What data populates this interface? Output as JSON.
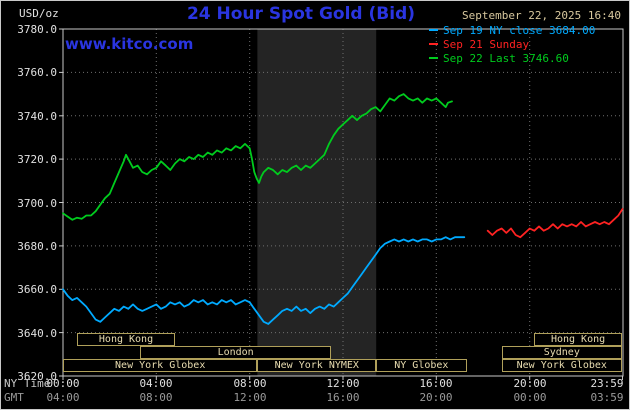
{
  "header": {
    "units_label": "USD/oz",
    "title": "24 Hour Spot Gold (Bid)",
    "datetime": "September 22, 2025 16:40",
    "watermark": "www.kitco.com"
  },
  "axes": {
    "ny_time_label": "NY Time",
    "gmt_label": "GMT"
  },
  "legend": {
    "items": [
      {
        "id": "sep19",
        "label": "Sep 19 NY close 3684.00",
        "color": "#00aaff"
      },
      {
        "id": "sep21",
        "label": "Sep 21 Sunday",
        "color": "#ff2222"
      },
      {
        "id": "sep22",
        "label": "Sep 22 Last 3746.60",
        "color": "#00cc1e"
      }
    ]
  },
  "colors": {
    "background": "#000000",
    "title_blue": "#2a35e0",
    "watermark_blue": "#2a35e0",
    "date_tan": "#d8c89e",
    "grid": "#6f6f6f",
    "plot_border": "#c8c8c8",
    "band": "#242424",
    "session_border": "#b0a05a",
    "session_text": "#e8dcb0"
  },
  "chart_data": {
    "type": "line",
    "title": "24 Hour Spot Gold (Bid)",
    "ylabel": "USD/oz",
    "ylim": [
      3620,
      3780
    ],
    "ytick_step": 20,
    "ytick_labels_top_to_bottom": [
      "3780.0",
      "3760.0",
      "3740.0",
      "3720.0",
      "3700.0",
      "3680.0",
      "3660.0",
      "3640.0",
      "3620.0"
    ],
    "xlim_hours": [
      0,
      24
    ],
    "grid": true,
    "legend_position": "top-right",
    "xticks": [
      {
        "hour": 0,
        "ny": "00:00",
        "gmt": "04:00"
      },
      {
        "hour": 4,
        "ny": "04:00",
        "gmt": "08:00"
      },
      {
        "hour": 8,
        "ny": "08:00",
        "gmt": "12:00"
      },
      {
        "hour": 12,
        "ny": "12:00",
        "gmt": "16:00"
      },
      {
        "hour": 16,
        "ny": "16:00",
        "gmt": "20:00"
      },
      {
        "hour": 20,
        "ny": "20:00",
        "gmt": "00:00"
      },
      {
        "hour": 23.98,
        "ny": "23:59",
        "gmt": "03:59"
      }
    ],
    "nymex_band_hours": [
      8.33,
      13.42
    ],
    "series": [
      {
        "id": "sep19",
        "name": "Sep 19 NY close",
        "close_value": 3684.0,
        "color": "#00aaff",
        "points": [
          [
            0,
            3660
          ],
          [
            0.2,
            3657
          ],
          [
            0.4,
            3655
          ],
          [
            0.6,
            3656
          ],
          [
            0.8,
            3654
          ],
          [
            1,
            3652
          ],
          [
            1.2,
            3649
          ],
          [
            1.4,
            3646
          ],
          [
            1.6,
            3645
          ],
          [
            1.8,
            3647
          ],
          [
            2,
            3649
          ],
          [
            2.2,
            3651
          ],
          [
            2.4,
            3650
          ],
          [
            2.6,
            3652
          ],
          [
            2.8,
            3651
          ],
          [
            3,
            3653
          ],
          [
            3.2,
            3651
          ],
          [
            3.4,
            3650
          ],
          [
            3.6,
            3651
          ],
          [
            3.8,
            3652
          ],
          [
            4,
            3653
          ],
          [
            4.2,
            3651
          ],
          [
            4.4,
            3652
          ],
          [
            4.6,
            3654
          ],
          [
            4.8,
            3653
          ],
          [
            5,
            3654
          ],
          [
            5.2,
            3652
          ],
          [
            5.4,
            3653
          ],
          [
            5.6,
            3655
          ],
          [
            5.8,
            3654
          ],
          [
            6,
            3655
          ],
          [
            6.2,
            3653
          ],
          [
            6.4,
            3654
          ],
          [
            6.6,
            3653
          ],
          [
            6.8,
            3655
          ],
          [
            7,
            3654
          ],
          [
            7.2,
            3655
          ],
          [
            7.4,
            3653
          ],
          [
            7.6,
            3654
          ],
          [
            7.8,
            3655
          ],
          [
            8,
            3654
          ],
          [
            8.2,
            3651
          ],
          [
            8.4,
            3648
          ],
          [
            8.6,
            3645
          ],
          [
            8.8,
            3644
          ],
          [
            9,
            3646
          ],
          [
            9.2,
            3648
          ],
          [
            9.4,
            3650
          ],
          [
            9.6,
            3651
          ],
          [
            9.8,
            3650
          ],
          [
            10,
            3652
          ],
          [
            10.2,
            3650
          ],
          [
            10.4,
            3651
          ],
          [
            10.6,
            3649
          ],
          [
            10.8,
            3651
          ],
          [
            11,
            3652
          ],
          [
            11.2,
            3651
          ],
          [
            11.4,
            3653
          ],
          [
            11.6,
            3652
          ],
          [
            11.8,
            3654
          ],
          [
            12,
            3656
          ],
          [
            12.2,
            3658
          ],
          [
            12.4,
            3661
          ],
          [
            12.6,
            3664
          ],
          [
            12.8,
            3667
          ],
          [
            13,
            3670
          ],
          [
            13.2,
            3673
          ],
          [
            13.4,
            3676
          ],
          [
            13.6,
            3679
          ],
          [
            13.8,
            3681
          ],
          [
            14,
            3682
          ],
          [
            14.2,
            3683
          ],
          [
            14.4,
            3682
          ],
          [
            14.6,
            3683
          ],
          [
            14.8,
            3682
          ],
          [
            15,
            3683
          ],
          [
            15.2,
            3682
          ],
          [
            15.4,
            3683
          ],
          [
            15.6,
            3683
          ],
          [
            15.8,
            3682
          ],
          [
            16,
            3683
          ],
          [
            16.2,
            3683
          ],
          [
            16.4,
            3684
          ],
          [
            16.6,
            3683
          ],
          [
            16.8,
            3684
          ],
          [
            17,
            3684
          ],
          [
            17.2,
            3684
          ]
        ]
      },
      {
        "id": "sep21",
        "name": "Sep 21 Sunday",
        "color": "#ff2222",
        "points": [
          [
            18.2,
            3687
          ],
          [
            18.4,
            3685
          ],
          [
            18.6,
            3687
          ],
          [
            18.8,
            3688
          ],
          [
            19,
            3686
          ],
          [
            19.2,
            3688
          ],
          [
            19.4,
            3685
          ],
          [
            19.6,
            3684
          ],
          [
            19.8,
            3686
          ],
          [
            20,
            3688
          ],
          [
            20.2,
            3687
          ],
          [
            20.4,
            3689
          ],
          [
            20.6,
            3687
          ],
          [
            20.8,
            3688
          ],
          [
            21,
            3690
          ],
          [
            21.2,
            3688
          ],
          [
            21.4,
            3690
          ],
          [
            21.6,
            3689
          ],
          [
            21.8,
            3690
          ],
          [
            22,
            3689
          ],
          [
            22.2,
            3691
          ],
          [
            22.4,
            3689
          ],
          [
            22.6,
            3690
          ],
          [
            22.8,
            3691
          ],
          [
            23,
            3690
          ],
          [
            23.2,
            3691
          ],
          [
            23.4,
            3690
          ],
          [
            23.6,
            3692
          ],
          [
            23.8,
            3694
          ],
          [
            23.98,
            3697
          ]
        ]
      },
      {
        "id": "sep22",
        "name": "Sep 22 Last",
        "last_value": 3746.6,
        "color": "#00cc1e",
        "points": [
          [
            0,
            3695
          ],
          [
            0.2,
            3693.5
          ],
          [
            0.4,
            3692
          ],
          [
            0.6,
            3693
          ],
          [
            0.8,
            3692.5
          ],
          [
            1,
            3694
          ],
          [
            1.2,
            3694
          ],
          [
            1.4,
            3696
          ],
          [
            1.6,
            3699
          ],
          [
            1.8,
            3702
          ],
          [
            2,
            3704
          ],
          [
            2.2,
            3709
          ],
          [
            2.4,
            3714
          ],
          [
            2.6,
            3719
          ],
          [
            2.7,
            3722
          ],
          [
            2.8,
            3720
          ],
          [
            3,
            3716
          ],
          [
            3.2,
            3717
          ],
          [
            3.4,
            3714
          ],
          [
            3.6,
            3713
          ],
          [
            3.8,
            3715
          ],
          [
            4,
            3716
          ],
          [
            4.2,
            3719
          ],
          [
            4.4,
            3717
          ],
          [
            4.6,
            3715
          ],
          [
            4.8,
            3718
          ],
          [
            5,
            3720
          ],
          [
            5.2,
            3719
          ],
          [
            5.4,
            3721
          ],
          [
            5.6,
            3720
          ],
          [
            5.8,
            3722
          ],
          [
            6,
            3721
          ],
          [
            6.2,
            3723
          ],
          [
            6.4,
            3722
          ],
          [
            6.6,
            3724
          ],
          [
            6.8,
            3723
          ],
          [
            7,
            3725
          ],
          [
            7.2,
            3724
          ],
          [
            7.4,
            3726
          ],
          [
            7.6,
            3725
          ],
          [
            7.8,
            3727
          ],
          [
            8,
            3725
          ],
          [
            8.1,
            3720
          ],
          [
            8.2,
            3714
          ],
          [
            8.3,
            3711
          ],
          [
            8.4,
            3709
          ],
          [
            8.5,
            3712
          ],
          [
            8.6,
            3714
          ],
          [
            8.8,
            3716
          ],
          [
            9,
            3715
          ],
          [
            9.2,
            3713
          ],
          [
            9.4,
            3715
          ],
          [
            9.6,
            3714
          ],
          [
            9.8,
            3716
          ],
          [
            10,
            3717
          ],
          [
            10.2,
            3715
          ],
          [
            10.4,
            3717
          ],
          [
            10.6,
            3716
          ],
          [
            10.8,
            3718
          ],
          [
            11,
            3720
          ],
          [
            11.2,
            3722
          ],
          [
            11.4,
            3727
          ],
          [
            11.6,
            3731
          ],
          [
            11.8,
            3734
          ],
          [
            12,
            3736
          ],
          [
            12.2,
            3738
          ],
          [
            12.4,
            3740
          ],
          [
            12.6,
            3738
          ],
          [
            12.8,
            3740
          ],
          [
            13,
            3741
          ],
          [
            13.2,
            3743
          ],
          [
            13.4,
            3744
          ],
          [
            13.6,
            3742
          ],
          [
            13.8,
            3745
          ],
          [
            14,
            3748
          ],
          [
            14.2,
            3747
          ],
          [
            14.4,
            3749
          ],
          [
            14.6,
            3750
          ],
          [
            14.8,
            3748
          ],
          [
            15,
            3747
          ],
          [
            15.2,
            3748
          ],
          [
            15.4,
            3746
          ],
          [
            15.6,
            3748
          ],
          [
            15.8,
            3747
          ],
          [
            16,
            3748
          ],
          [
            16.2,
            3746
          ],
          [
            16.4,
            3744
          ],
          [
            16.5,
            3746
          ],
          [
            16.67,
            3746.6
          ]
        ]
      }
    ],
    "sessions": [
      {
        "label": "Hong Kong",
        "row": 0,
        "start": 0.6,
        "end": 4.8
      },
      {
        "label": "Hong Kong",
        "row": 0,
        "start": 20.2,
        "end": 23.95
      },
      {
        "label": "London",
        "row": 1,
        "start": 3.3,
        "end": 11.5
      },
      {
        "label": "Sydney",
        "row": 1,
        "start": 18.8,
        "end": 23.95
      },
      {
        "label": "New York Globex",
        "row": 2,
        "start": 0,
        "end": 8.33
      },
      {
        "label": "New York NYMEX",
        "row": 2,
        "start": 8.33,
        "end": 13.42
      },
      {
        "label": "NY Globex",
        "row": 2,
        "start": 13.42,
        "end": 17.3
      },
      {
        "label": "New York Globex",
        "row": 2,
        "start": 18.8,
        "end": 23.95
      }
    ]
  }
}
